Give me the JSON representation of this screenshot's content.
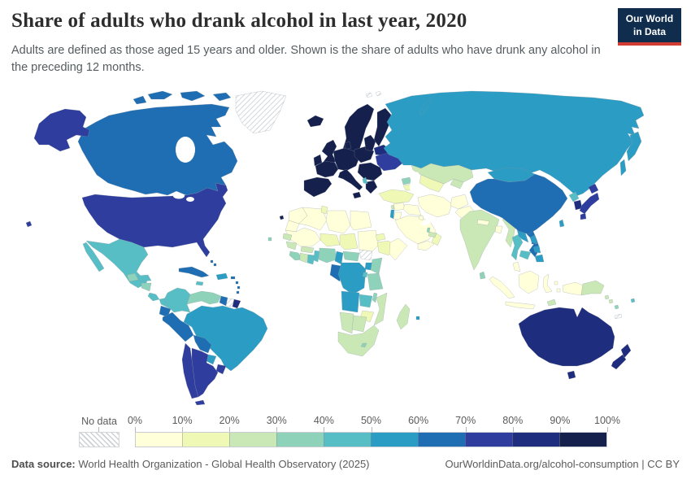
{
  "header": {
    "title": "Share of adults who drank alcohol in last year, 2020",
    "subtitle": "Adults are defined as those aged 15 years and older. Shown is the share of adults who have drunk any alcohol in the preceding 12 months.",
    "logo_line1": "Our World",
    "logo_line2": "in Data",
    "logo_bg": "#102d4e",
    "logo_accent": "#d13d33"
  },
  "chart_data": {
    "type": "heatmap",
    "subtype": "world-choropleth",
    "title": "Share of adults who drank alcohol in last year, 2020",
    "year": "2020",
    "unit": "%",
    "legend": {
      "no_data_label": "No data",
      "tick_labels": [
        "0%",
        "10%",
        "20%",
        "30%",
        "40%",
        "50%",
        "60%",
        "70%",
        "80%",
        "90%",
        "100%"
      ],
      "bin_ranges": [
        "0-10%",
        "10-20%",
        "20-30%",
        "30-40%",
        "40-50%",
        "50-60%",
        "60-70%",
        "70-80%",
        "80-90%",
        "90-100%"
      ],
      "colors": [
        "#ffffd9",
        "#eff9b5",
        "#c9e8b6",
        "#8fd2ba",
        "#58bec5",
        "#2b9dc4",
        "#1f6eb3",
        "#2e3d9e",
        "#1f2d7e",
        "#15204d"
      ]
    },
    "regions": {
      "greenland": "no_data",
      "canada": 6,
      "usa": 7,
      "mexico": 4,
      "guatemala": 3,
      "honduras": 4,
      "nicaragua": 3,
      "costa_rica": 4,
      "panama": 4,
      "cuba": 6,
      "jamaica": 4,
      "hispaniola": 5,
      "puerto_rico": 6,
      "lesser_antilles": 6,
      "bahamas": 6,
      "colombia": 4,
      "venezuela": 3,
      "guyana": 6,
      "suriname": "no_data",
      "french_guiana": 8,
      "ecuador": 6,
      "peru": 6,
      "brazil": 5,
      "bolivia": 6,
      "paraguay": 5,
      "uruguay": 7,
      "chile": 7,
      "argentina": 7,
      "iceland": 9,
      "united_kingdom": 9,
      "ireland": 9,
      "norway_sweden": 9,
      "finland": 9,
      "denmark": 9,
      "france": 9,
      "iberia": 9,
      "central_europe": 9,
      "italy": 9,
      "poland": 9,
      "baltic_states": 9,
      "balkans": 9,
      "greece": 9,
      "albania": 4,
      "belarus": 8,
      "ukraine": 7,
      "russia": 5,
      "svalbard": "no_data",
      "kazakhstan": 2,
      "uzbekistan_turkmenistan": 1,
      "kyrgyzstan_tajikistan": 2,
      "georgia": 3,
      "armenia_azerbaijan": 1,
      "turkey": 1,
      "syria": 0,
      "lebanon": 2,
      "israel": 5,
      "jordan": 0,
      "iraq": 0,
      "saudi_arabia": 0,
      "kuwait": 0,
      "yemen": 0,
      "oman": 1,
      "uae": 2,
      "qatar": 3,
      "iran": 0,
      "afghanistan": 0,
      "pakistan": 0,
      "western_sahara": 0,
      "morocco": 0,
      "algeria": 0,
      "tunisia": 1,
      "libya": 0,
      "egypt": 0,
      "mauritania_mali": 0,
      "senegal": 2,
      "guinea": 2,
      "sierra_leone_liberia": 3,
      "ivory_coast": 2,
      "ghana": 4,
      "togo_benin": 4,
      "burkina_faso": 2,
      "niger": 1,
      "nigeria": 3,
      "chad": 1,
      "sudan": 0,
      "south_sudan": "no_data",
      "eritrea": 1,
      "ethiopia": 1,
      "somalia": 0,
      "cameroon": 5,
      "central_african_republic": 3,
      "gabon_congo": 6,
      "drc": 5,
      "uganda": 5,
      "kenya": 3,
      "rwanda_burundi": 4,
      "tanzania": 3,
      "angola": 5,
      "zambia": 4,
      "malawi": 3,
      "mozambique": 2,
      "zimbabwe": 1,
      "namibia": 2,
      "botswana": 2,
      "south_africa": 2,
      "lesotho": 3,
      "madagascar": 2,
      "mauritius": 5,
      "cape_verde": 3,
      "india": 2,
      "sri_lanka": 3,
      "nepal": 0,
      "bangladesh": 0,
      "myanmar": 2,
      "thailand": 4,
      "laos": 5,
      "cambodia": 4,
      "vietnam": 6,
      "malaysia": 0,
      "indonesia": 0,
      "timor_leste": 2,
      "papua_new_guinea": 2,
      "china": 6,
      "mongolia": 5,
      "taiwan": 5,
      "north_korea": 4,
      "south_korea": 8,
      "japan": 7,
      "philippines": 5,
      "australia": 8,
      "new_zealand": 8,
      "fiji": 4,
      "solomon_islands": 2,
      "vanuatu": 3,
      "new_caledonia": "no_data"
    }
  },
  "footer": {
    "source_label": "Data source:",
    "source_text": " World Health Organization - Global Health Observatory (2025)",
    "right_text": "OurWorldinData.org/alcohol-consumption | CC BY"
  }
}
